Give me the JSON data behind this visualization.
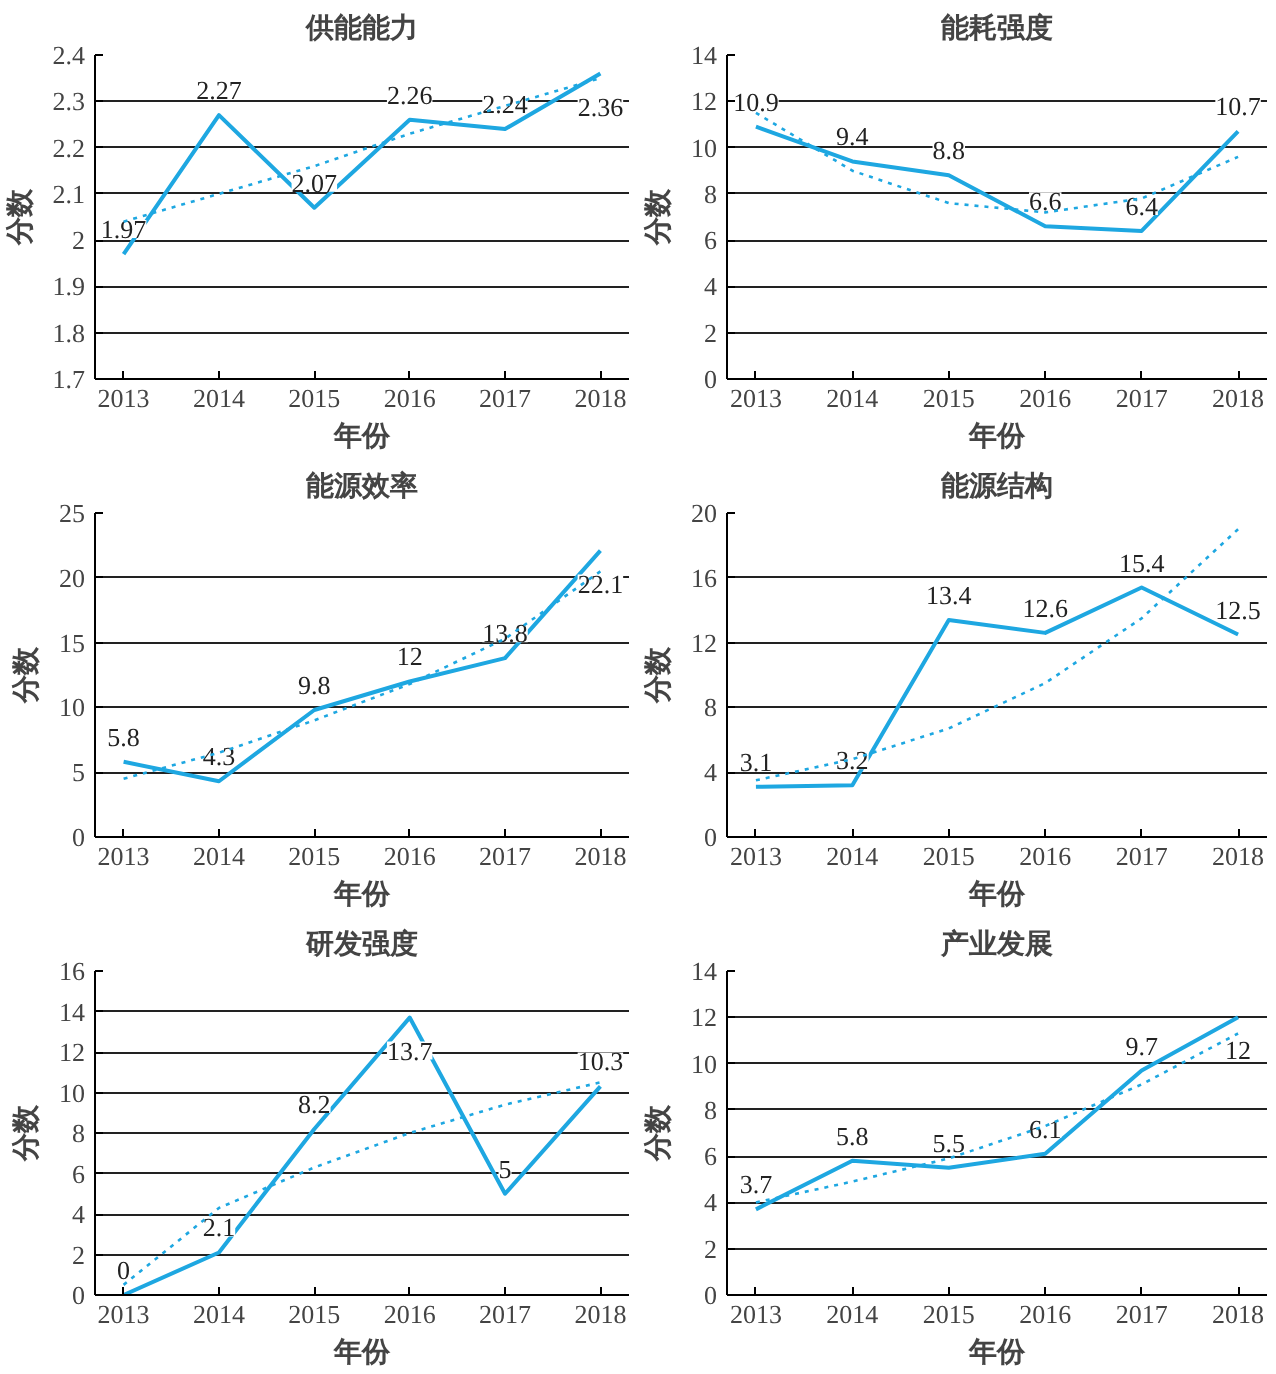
{
  "chart_data": [
    {
      "type": "line",
      "title": "供能能力",
      "xlabel": "年份",
      "ylabel": "分数",
      "categories": [
        "2013",
        "2014",
        "2015",
        "2016",
        "2017",
        "2018"
      ],
      "ylim": [
        1.7,
        2.4
      ],
      "yticks": [
        1.7,
        1.8,
        1.9,
        2,
        2.1,
        2.2,
        2.3,
        2.4
      ],
      "grid": "y",
      "series": [
        {
          "color": "#1ea7e1",
          "values": [
            1.97,
            2.27,
            2.07,
            2.26,
            2.24,
            2.36
          ],
          "data_labels": true
        },
        {
          "type": "line",
          "color": "#1ea7e1",
          "line_style": "dotted",
          "values": [
            2.04,
            2.1,
            2.16,
            2.23,
            2.29,
            2.35
          ]
        }
      ]
    },
    {
      "type": "line",
      "title": "能耗强度",
      "xlabel": "年份",
      "ylabel": "分数",
      "categories": [
        "2013",
        "2014",
        "2015",
        "2016",
        "2017",
        "2018"
      ],
      "ylim": [
        0,
        14
      ],
      "yticks": [
        0,
        2,
        4,
        6,
        8,
        10,
        12,
        14
      ],
      "grid": "y",
      "series": [
        {
          "color": "#1ea7e1",
          "values": [
            10.9,
            9.4,
            8.8,
            6.6,
            6.4,
            10.7
          ],
          "data_labels": true
        },
        {
          "type": "line",
          "color": "#1ea7e1",
          "line_style": "dotted",
          "values": [
            11.5,
            9,
            7.6,
            7.2,
            7.8,
            9.6
          ]
        }
      ]
    },
    {
      "type": "line",
      "title": "能源效率",
      "xlabel": "年份",
      "ylabel": "分数",
      "categories": [
        "2013",
        "2014",
        "2015",
        "2016",
        "2017",
        "2018"
      ],
      "ylim": [
        0,
        25
      ],
      "yticks": [
        0,
        5,
        10,
        15,
        20,
        25
      ],
      "grid": "y",
      "series": [
        {
          "color": "#1ea7e1",
          "values": [
            5.8,
            4.3,
            9.8,
            12,
            13.8,
            22.1
          ],
          "data_labels": true
        },
        {
          "type": "line",
          "color": "#1ea7e1",
          "line_style": "dotted",
          "values": [
            4.5,
            6.5,
            9,
            11.8,
            15.3,
            20.5
          ]
        }
      ]
    },
    {
      "type": "line",
      "title": "能源结构",
      "xlabel": "年份",
      "ylabel": "分数",
      "categories": [
        "2013",
        "2014",
        "2015",
        "2016",
        "2017",
        "2018"
      ],
      "ylim": [
        0,
        20
      ],
      "yticks": [
        0,
        4,
        8,
        12,
        16,
        20
      ],
      "grid": "y",
      "series": [
        {
          "color": "#1ea7e1",
          "values": [
            3.1,
            3.2,
            13.4,
            12.6,
            15.4,
            12.5
          ],
          "data_labels": true
        },
        {
          "type": "line",
          "color": "#1ea7e1",
          "line_style": "dotted",
          "values": [
            3.5,
            4.8,
            6.7,
            9.5,
            13.5,
            19
          ]
        }
      ]
    },
    {
      "type": "line",
      "title": "研发强度",
      "xlabel": "年份",
      "ylabel": "分数",
      "categories": [
        "2013",
        "2014",
        "2015",
        "2016",
        "2017",
        "2018"
      ],
      "ylim": [
        0,
        16
      ],
      "yticks": [
        0,
        2,
        4,
        6,
        8,
        10,
        12,
        14,
        16
      ],
      "grid": "y",
      "series": [
        {
          "color": "#1ea7e1",
          "values": [
            0,
            2.1,
            8.2,
            13.7,
            5,
            10.3
          ],
          "data_labels": true
        },
        {
          "type": "line",
          "color": "#1ea7e1",
          "line_style": "dotted",
          "values": [
            0.5,
            4.3,
            6.3,
            8,
            9.4,
            10.5
          ]
        }
      ]
    },
    {
      "type": "line",
      "title": "产业发展",
      "xlabel": "年份",
      "ylabel": "分数",
      "categories": [
        "2013",
        "2014",
        "2015",
        "2016",
        "2017",
        "2018"
      ],
      "ylim": [
        0,
        14
      ],
      "yticks": [
        0,
        2,
        4,
        6,
        8,
        10,
        12,
        14
      ],
      "grid": "y",
      "series": [
        {
          "color": "#1ea7e1",
          "values": [
            3.7,
            5.8,
            5.5,
            6.1,
            9.7,
            12
          ],
          "data_labels": true
        },
        {
          "type": "line",
          "color": "#1ea7e1",
          "line_style": "dotted",
          "values": [
            4,
            4.9,
            5.9,
            7.3,
            9.1,
            11.3
          ]
        }
      ]
    }
  ]
}
